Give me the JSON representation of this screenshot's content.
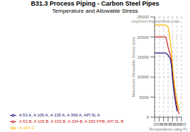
{
  "chart_data": {
    "type": "line",
    "title": "B31.3 Process Piping - Carbon Steel Pipes",
    "subtitle": "Temperature and Allowable Stress",
    "xlabel": "Temperature (deg F)",
    "ylabel": "Maximum Allowable Stress (psi)",
    "annotations": [
      "engineeringtoolbox.com"
    ],
    "x": [
      0,
      200,
      400,
      500,
      600,
      650,
      700,
      750,
      800,
      850,
      900,
      950,
      1000,
      1050,
      1100
    ],
    "xlim": [
      0,
      1200
    ],
    "xticks": [
      0,
      200,
      400,
      600,
      800,
      1000,
      1200
    ],
    "ylim": [
      0,
      25000
    ],
    "yticks": [
      0,
      5000,
      10000,
      15000,
      20000,
      25000
    ],
    "grid": true,
    "legend": "bottom",
    "series": [
      {
        "name": "A-106 C",
        "color": "#FFB800",
        "values": [
          23000,
          23000,
          23000,
          23000,
          22500,
          21000,
          19000,
          16500,
          13000,
          10000,
          7500,
          5500,
          4000,
          2800,
          1800
        ]
      },
      {
        "name": "A 53 B, A 106 B, A 333 B, A 334 B, A 369 FPB,  API 5L B",
        "color": "#CC2222",
        "values": [
          20000,
          20000,
          20000,
          20000,
          17500,
          16500,
          15500,
          14000,
          10500,
          8000,
          5800,
          4000,
          2500,
          1500,
          800
        ]
      },
      {
        "name": "A 53 A, A 106 A, A 135 A, A 369 A, API 5L A",
        "color": "#1A1A7A",
        "values": [
          16000,
          16000,
          16000,
          16000,
          15500,
          15000,
          14500,
          13000,
          9500,
          7000,
          4800,
          3000,
          1500,
          null,
          null
        ]
      }
    ]
  }
}
